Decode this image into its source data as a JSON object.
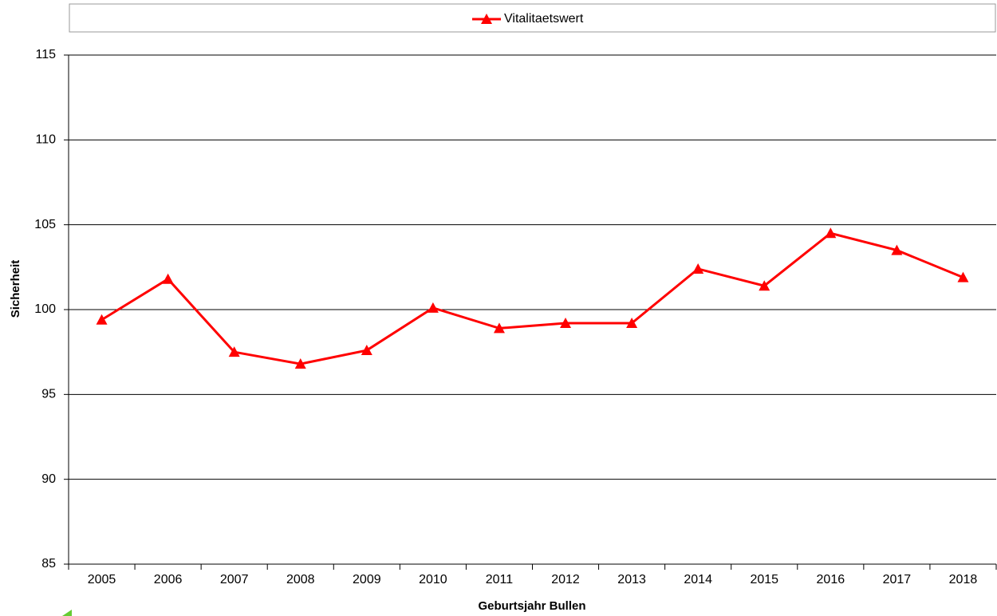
{
  "chart_data": {
    "type": "line",
    "x_label": "Geburtsjahr Bullen",
    "y_label": "Sicherheit",
    "categories": [
      "2005",
      "2006",
      "2007",
      "2008",
      "2009",
      "2010",
      "2011",
      "2012",
      "2013",
      "2014",
      "2015",
      "2016",
      "2017",
      "2018"
    ],
    "series": [
      {
        "name": "Vitalitaetswert",
        "color": "#ff0000",
        "values": [
          99.4,
          101.8,
          97.5,
          96.8,
          97.6,
          100.1,
          98.9,
          99.2,
          99.2,
          102.4,
          101.4,
          104.5,
          103.5,
          101.9
        ]
      }
    ],
    "ylim": [
      85,
      115
    ],
    "yticks": [
      85,
      90,
      95,
      100,
      105,
      110,
      115
    ],
    "grid": true,
    "legend": "top"
  }
}
